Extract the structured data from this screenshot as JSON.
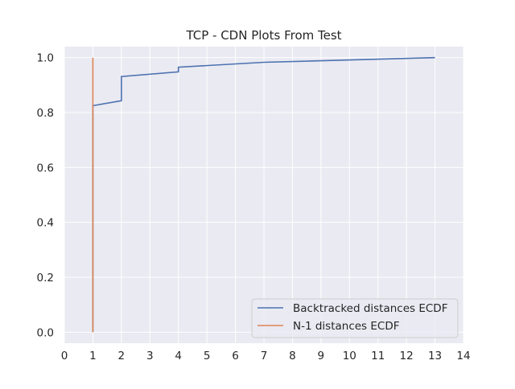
{
  "chart_data": {
    "type": "line",
    "title": "TCP - CDN Plots From Test",
    "xlabel": "",
    "ylabel": "",
    "xlim": [
      0,
      14
    ],
    "ylim": [
      -0.04,
      1.04
    ],
    "xticks": [
      "0",
      "1",
      "2",
      "3",
      "4",
      "5",
      "6",
      "7",
      "8",
      "9",
      "10",
      "11",
      "12",
      "13",
      "14"
    ],
    "xtick_values": [
      0,
      1,
      2,
      3,
      4,
      5,
      6,
      7,
      8,
      9,
      10,
      11,
      12,
      13,
      14
    ],
    "yticks": [
      "0.0",
      "0.2",
      "0.4",
      "0.6",
      "0.8",
      "1.0"
    ],
    "ytick_values": [
      0.0,
      0.2,
      0.4,
      0.6,
      0.8,
      1.0
    ],
    "grid": true,
    "legend_position": "bottom-right",
    "series": [
      {
        "name": "Backtracked distances ECDF",
        "color": "#4c72b0",
        "x": [
          1,
          1,
          2,
          2,
          4,
          4,
          7,
          13
        ],
        "y": [
          0.0,
          0.825,
          0.843,
          0.931,
          0.948,
          0.965,
          0.983,
          1.0
        ]
      },
      {
        "name": "N-1 distances ECDF",
        "color": "#dd8452",
        "x": [
          1,
          1
        ],
        "y": [
          0.0,
          1.0
        ]
      }
    ],
    "colors": {
      "plot_background": "#eaeaf2",
      "grid": "#ffffff"
    }
  }
}
